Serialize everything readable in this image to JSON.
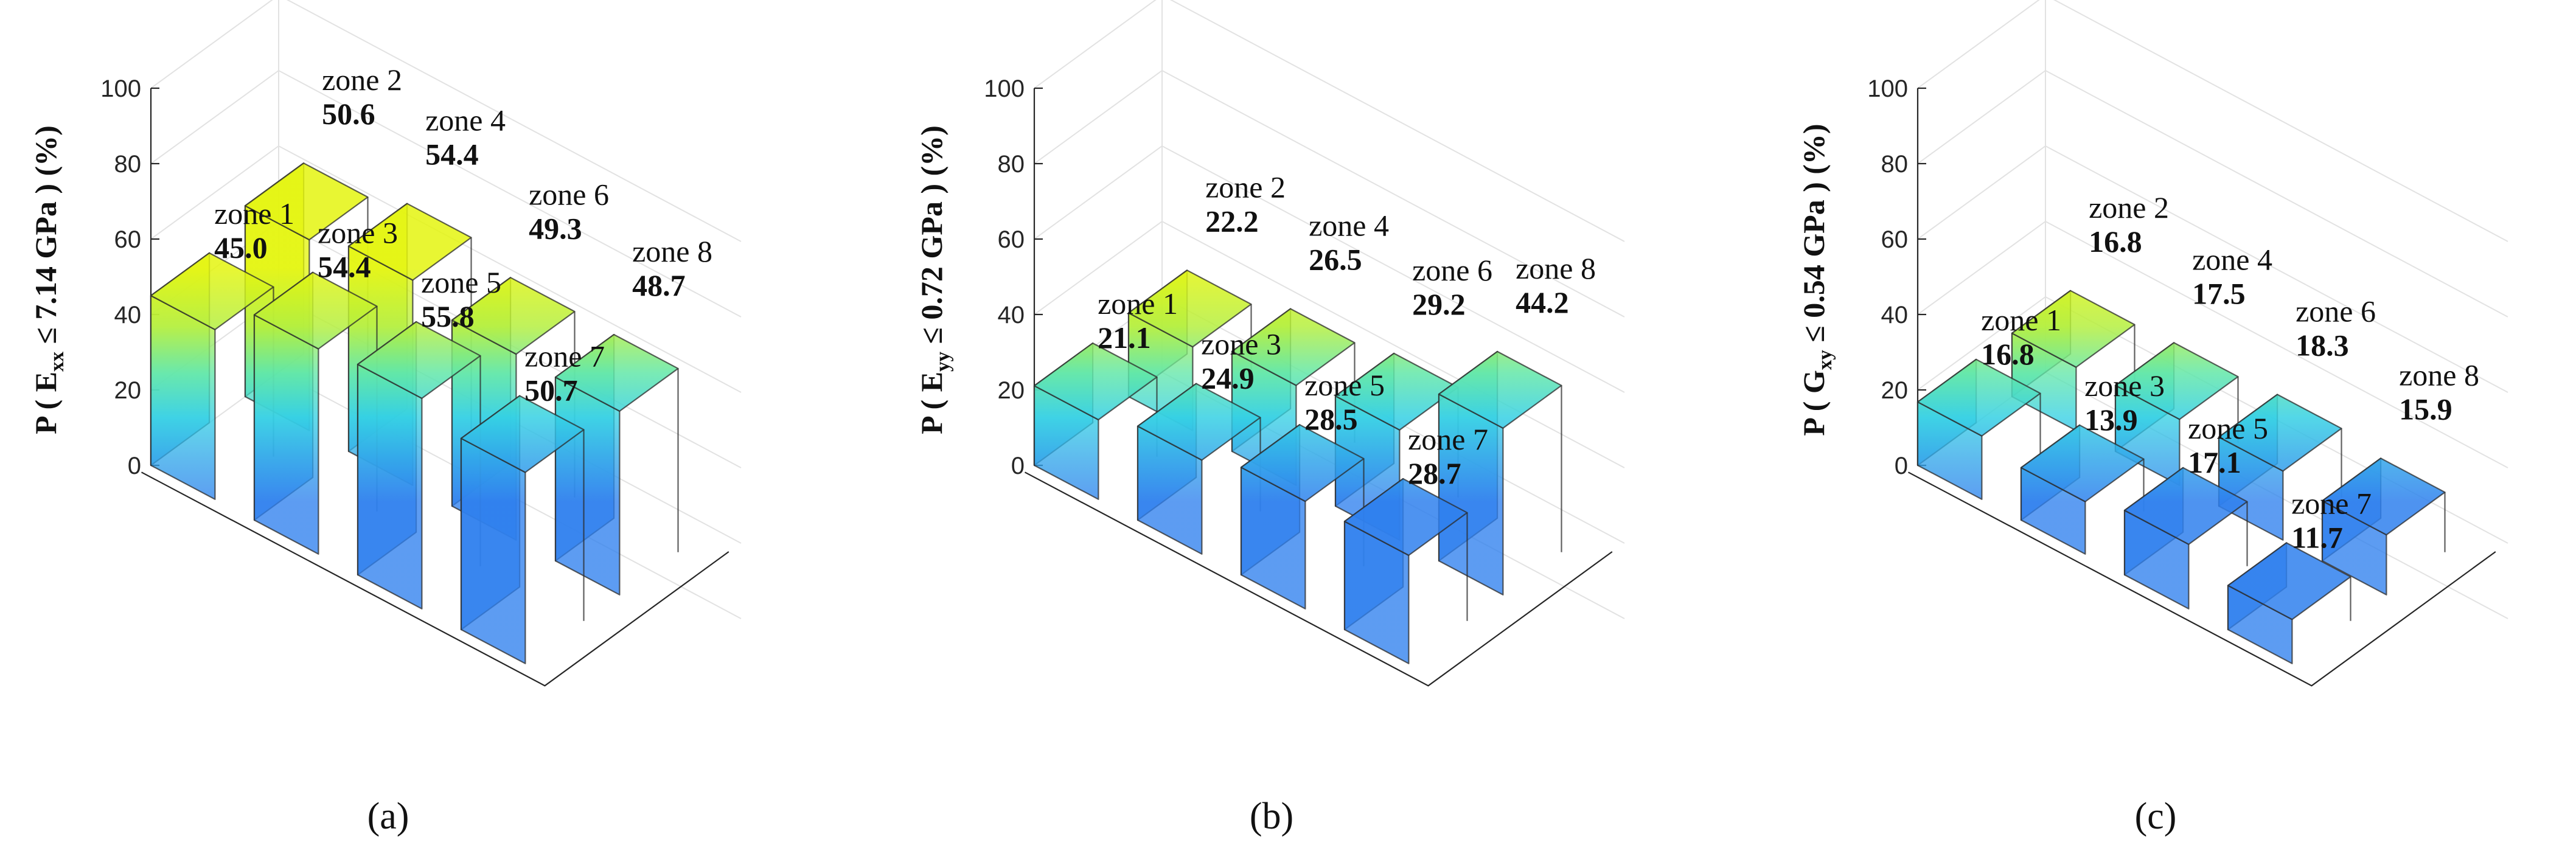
{
  "colors": {
    "low": "#2f80ee",
    "high": "#e4f50f"
  },
  "chart_data": [
    {
      "type": "bar3d",
      "panel_label": "(a)",
      "ylabel": {
        "prefix": "P ( E",
        "sub": "xx",
        "suffix": " ≤ 7.14 GPa ) (%)"
      },
      "zlim": [
        0,
        100
      ],
      "ticks": [
        "0",
        "20",
        "40",
        "60",
        "80",
        "100"
      ],
      "zones": [
        {
          "name": "zone 1",
          "value": "45.0"
        },
        {
          "name": "zone 2",
          "value": "50.6"
        },
        {
          "name": "zone 3",
          "value": "54.4"
        },
        {
          "name": "zone 4",
          "value": "54.4"
        },
        {
          "name": "zone 5",
          "value": "55.8"
        },
        {
          "name": "zone 6",
          "value": "49.3"
        },
        {
          "name": "zone 7",
          "value": "50.7"
        },
        {
          "name": "zone 8",
          "value": "48.7"
        }
      ]
    },
    {
      "type": "bar3d",
      "panel_label": "(b)",
      "ylabel": {
        "prefix": "P ( E",
        "sub": "yy",
        "suffix": " ≤ 0.72 GPa ) (%)"
      },
      "zlim": [
        0,
        100
      ],
      "ticks": [
        "0",
        "20",
        "40",
        "60",
        "80",
        "100"
      ],
      "zones": [
        {
          "name": "zone 1",
          "value": "21.1"
        },
        {
          "name": "zone 2",
          "value": "22.2"
        },
        {
          "name": "zone 3",
          "value": "24.9"
        },
        {
          "name": "zone 4",
          "value": "26.5"
        },
        {
          "name": "zone 5",
          "value": "28.5"
        },
        {
          "name": "zone 6",
          "value": "29.2"
        },
        {
          "name": "zone 7",
          "value": "28.7"
        },
        {
          "name": "zone 8",
          "value": "44.2"
        }
      ]
    },
    {
      "type": "bar3d",
      "panel_label": "(c)",
      "ylabel": {
        "prefix": "P ( G",
        "sub": "xy",
        "suffix": " ≤ 0.54 GPa ) (%)"
      },
      "zlim": [
        0,
        100
      ],
      "ticks": [
        "0",
        "20",
        "40",
        "60",
        "80",
        "100"
      ],
      "zones": [
        {
          "name": "zone 1",
          "value": "16.8"
        },
        {
          "name": "zone 2",
          "value": "16.8"
        },
        {
          "name": "zone 3",
          "value": "13.9"
        },
        {
          "name": "zone 4",
          "value": "17.5"
        },
        {
          "name": "zone 5",
          "value": "17.1"
        },
        {
          "name": "zone 6",
          "value": "18.3"
        },
        {
          "name": "zone 7",
          "value": "11.7"
        },
        {
          "name": "zone 8",
          "value": "15.9"
        }
      ]
    }
  ]
}
